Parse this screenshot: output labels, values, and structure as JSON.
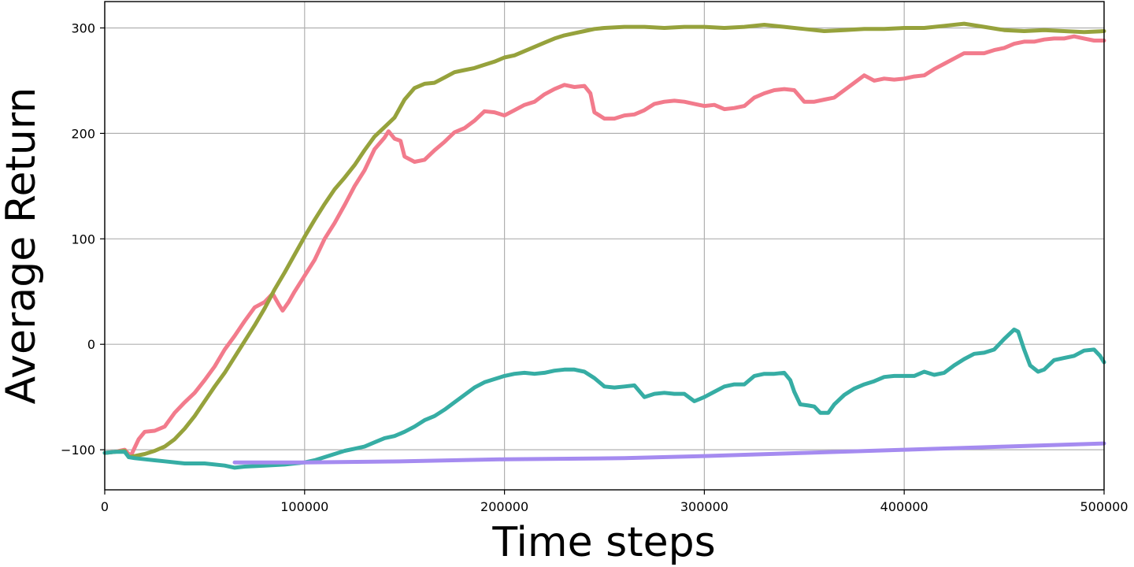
{
  "chart_data": {
    "type": "line",
    "xlabel": "Time steps",
    "ylabel": "Average Return",
    "xlim": [
      0,
      500000
    ],
    "ylim": [
      -138,
      325
    ],
    "x_ticks": [
      0,
      100000,
      200000,
      300000,
      400000,
      500000
    ],
    "y_ticks": [
      -100,
      0,
      100,
      200,
      300
    ],
    "grid": true,
    "series": [
      {
        "color": "#f27b8c",
        "points": [
          [
            0,
            -103
          ],
          [
            5000,
            -102
          ],
          [
            10000,
            -100
          ],
          [
            13000,
            -106
          ],
          [
            17000,
            -90
          ],
          [
            20000,
            -83
          ],
          [
            25000,
            -82
          ],
          [
            30000,
            -78
          ],
          [
            35000,
            -65
          ],
          [
            40000,
            -55
          ],
          [
            45000,
            -46
          ],
          [
            50000,
            -34
          ],
          [
            55000,
            -21
          ],
          [
            60000,
            -5
          ],
          [
            65000,
            8
          ],
          [
            70000,
            22
          ],
          [
            75000,
            35
          ],
          [
            80000,
            40
          ],
          [
            84000,
            48
          ],
          [
            87000,
            38
          ],
          [
            89000,
            32
          ],
          [
            92000,
            40
          ],
          [
            95000,
            50
          ],
          [
            100000,
            65
          ],
          [
            105000,
            80
          ],
          [
            110000,
            100
          ],
          [
            115000,
            115
          ],
          [
            120000,
            132
          ],
          [
            125000,
            150
          ],
          [
            130000,
            165
          ],
          [
            135000,
            185
          ],
          [
            140000,
            196
          ],
          [
            142000,
            202
          ],
          [
            145000,
            195
          ],
          [
            148000,
            193
          ],
          [
            150000,
            178
          ],
          [
            155000,
            173
          ],
          [
            160000,
            175
          ],
          [
            165000,
            184
          ],
          [
            170000,
            192
          ],
          [
            175000,
            201
          ],
          [
            180000,
            205
          ],
          [
            185000,
            212
          ],
          [
            190000,
            221
          ],
          [
            195000,
            220
          ],
          [
            200000,
            217
          ],
          [
            205000,
            222
          ],
          [
            210000,
            227
          ],
          [
            215000,
            230
          ],
          [
            220000,
            237
          ],
          [
            225000,
            242
          ],
          [
            230000,
            246
          ],
          [
            235000,
            244
          ],
          [
            240000,
            245
          ],
          [
            243000,
            238
          ],
          [
            245000,
            220
          ],
          [
            250000,
            214
          ],
          [
            255000,
            214
          ],
          [
            260000,
            217
          ],
          [
            265000,
            218
          ],
          [
            270000,
            222
          ],
          [
            275000,
            228
          ],
          [
            280000,
            230
          ],
          [
            285000,
            231
          ],
          [
            290000,
            230
          ],
          [
            295000,
            228
          ],
          [
            300000,
            226
          ],
          [
            305000,
            227
          ],
          [
            310000,
            223
          ],
          [
            315000,
            224
          ],
          [
            320000,
            226
          ],
          [
            325000,
            234
          ],
          [
            330000,
            238
          ],
          [
            335000,
            241
          ],
          [
            340000,
            242
          ],
          [
            345000,
            241
          ],
          [
            350000,
            230
          ],
          [
            355000,
            230
          ],
          [
            360000,
            232
          ],
          [
            365000,
            234
          ],
          [
            370000,
            241
          ],
          [
            375000,
            248
          ],
          [
            380000,
            255
          ],
          [
            385000,
            250
          ],
          [
            390000,
            252
          ],
          [
            395000,
            251
          ],
          [
            400000,
            252
          ],
          [
            405000,
            254
          ],
          [
            410000,
            255
          ],
          [
            415000,
            261
          ],
          [
            420000,
            266
          ],
          [
            425000,
            271
          ],
          [
            430000,
            276
          ],
          [
            435000,
            276
          ],
          [
            440000,
            276
          ],
          [
            445000,
            279
          ],
          [
            450000,
            281
          ],
          [
            455000,
            285
          ],
          [
            460000,
            287
          ],
          [
            465000,
            287
          ],
          [
            470000,
            289
          ],
          [
            475000,
            290
          ],
          [
            480000,
            290
          ],
          [
            485000,
            292
          ],
          [
            490000,
            290
          ],
          [
            495000,
            288
          ],
          [
            500000,
            288
          ]
        ]
      },
      {
        "color": "#96a23c",
        "points": [
          [
            0,
            -103
          ],
          [
            5000,
            -102
          ],
          [
            10000,
            -101
          ],
          [
            12000,
            -107
          ],
          [
            15000,
            -106
          ],
          [
            20000,
            -104
          ],
          [
            25000,
            -101
          ],
          [
            30000,
            -97
          ],
          [
            35000,
            -90
          ],
          [
            40000,
            -80
          ],
          [
            45000,
            -68
          ],
          [
            50000,
            -54
          ],
          [
            55000,
            -40
          ],
          [
            60000,
            -27
          ],
          [
            65000,
            -12
          ],
          [
            70000,
            3
          ],
          [
            75000,
            18
          ],
          [
            80000,
            34
          ],
          [
            85000,
            52
          ],
          [
            90000,
            68
          ],
          [
            95000,
            85
          ],
          [
            100000,
            102
          ],
          [
            105000,
            118
          ],
          [
            110000,
            133
          ],
          [
            115000,
            147
          ],
          [
            120000,
            158
          ],
          [
            125000,
            170
          ],
          [
            130000,
            184
          ],
          [
            135000,
            197
          ],
          [
            140000,
            206
          ],
          [
            145000,
            215
          ],
          [
            150000,
            232
          ],
          [
            155000,
            243
          ],
          [
            160000,
            247
          ],
          [
            165000,
            248
          ],
          [
            170000,
            253
          ],
          [
            175000,
            258
          ],
          [
            180000,
            260
          ],
          [
            185000,
            262
          ],
          [
            190000,
            265
          ],
          [
            195000,
            268
          ],
          [
            200000,
            272
          ],
          [
            205000,
            274
          ],
          [
            210000,
            278
          ],
          [
            215000,
            282
          ],
          [
            220000,
            286
          ],
          [
            225000,
            290
          ],
          [
            230000,
            293
          ],
          [
            235000,
            295
          ],
          [
            240000,
            297
          ],
          [
            245000,
            299
          ],
          [
            250000,
            300
          ],
          [
            260000,
            301
          ],
          [
            270000,
            301
          ],
          [
            280000,
            300
          ],
          [
            290000,
            301
          ],
          [
            300000,
            301
          ],
          [
            310000,
            300
          ],
          [
            320000,
            301
          ],
          [
            330000,
            303
          ],
          [
            340000,
            301
          ],
          [
            350000,
            299
          ],
          [
            360000,
            297
          ],
          [
            370000,
            298
          ],
          [
            380000,
            299
          ],
          [
            390000,
            299
          ],
          [
            400000,
            300
          ],
          [
            410000,
            300
          ],
          [
            420000,
            302
          ],
          [
            430000,
            304
          ],
          [
            440000,
            301
          ],
          [
            450000,
            298
          ],
          [
            460000,
            297
          ],
          [
            470000,
            298
          ],
          [
            480000,
            297
          ],
          [
            490000,
            296
          ],
          [
            500000,
            297
          ]
        ]
      },
      {
        "color": "#36ada4",
        "points": [
          [
            0,
            -103
          ],
          [
            5000,
            -102
          ],
          [
            10000,
            -102
          ],
          [
            12000,
            -107
          ],
          [
            15000,
            -108
          ],
          [
            20000,
            -109
          ],
          [
            25000,
            -110
          ],
          [
            30000,
            -111
          ],
          [
            40000,
            -113
          ],
          [
            50000,
            -113
          ],
          [
            60000,
            -115
          ],
          [
            65000,
            -117
          ],
          [
            70000,
            -116
          ],
          [
            80000,
            -115
          ],
          [
            90000,
            -114
          ],
          [
            95000,
            -113
          ],
          [
            100000,
            -112
          ],
          [
            105000,
            -110
          ],
          [
            110000,
            -107
          ],
          [
            115000,
            -104
          ],
          [
            120000,
            -101
          ],
          [
            125000,
            -99
          ],
          [
            130000,
            -97
          ],
          [
            135000,
            -93
          ],
          [
            140000,
            -89
          ],
          [
            145000,
            -87
          ],
          [
            150000,
            -83
          ],
          [
            155000,
            -78
          ],
          [
            160000,
            -72
          ],
          [
            165000,
            -68
          ],
          [
            170000,
            -62
          ],
          [
            175000,
            -55
          ],
          [
            180000,
            -48
          ],
          [
            185000,
            -41
          ],
          [
            190000,
            -36
          ],
          [
            195000,
            -33
          ],
          [
            200000,
            -30
          ],
          [
            205000,
            -28
          ],
          [
            210000,
            -27
          ],
          [
            215000,
            -28
          ],
          [
            220000,
            -27
          ],
          [
            225000,
            -25
          ],
          [
            230000,
            -24
          ],
          [
            235000,
            -24
          ],
          [
            240000,
            -26
          ],
          [
            245000,
            -32
          ],
          [
            250000,
            -40
          ],
          [
            255000,
            -41
          ],
          [
            260000,
            -40
          ],
          [
            265000,
            -39
          ],
          [
            270000,
            -50
          ],
          [
            275000,
            -47
          ],
          [
            280000,
            -46
          ],
          [
            285000,
            -47
          ],
          [
            290000,
            -47
          ],
          [
            295000,
            -54
          ],
          [
            300000,
            -50
          ],
          [
            305000,
            -45
          ],
          [
            310000,
            -40
          ],
          [
            315000,
            -38
          ],
          [
            320000,
            -38
          ],
          [
            325000,
            -30
          ],
          [
            330000,
            -28
          ],
          [
            335000,
            -28
          ],
          [
            340000,
            -27
          ],
          [
            343000,
            -34
          ],
          [
            345000,
            -45
          ],
          [
            348000,
            -57
          ],
          [
            352000,
            -58
          ],
          [
            355000,
            -59
          ],
          [
            358000,
            -65
          ],
          [
            362000,
            -65
          ],
          [
            365000,
            -57
          ],
          [
            370000,
            -48
          ],
          [
            375000,
            -42
          ],
          [
            380000,
            -38
          ],
          [
            385000,
            -35
          ],
          [
            390000,
            -31
          ],
          [
            395000,
            -30
          ],
          [
            400000,
            -30
          ],
          [
            405000,
            -30
          ],
          [
            410000,
            -26
          ],
          [
            415000,
            -29
          ],
          [
            420000,
            -27
          ],
          [
            425000,
            -20
          ],
          [
            430000,
            -14
          ],
          [
            435000,
            -9
          ],
          [
            440000,
            -8
          ],
          [
            445000,
            -5
          ],
          [
            450000,
            5
          ],
          [
            455000,
            14
          ],
          [
            457000,
            12
          ],
          [
            460000,
            -5
          ],
          [
            463000,
            -20
          ],
          [
            467000,
            -26
          ],
          [
            470000,
            -24
          ],
          [
            475000,
            -15
          ],
          [
            480000,
            -13
          ],
          [
            485000,
            -11
          ],
          [
            490000,
            -6
          ],
          [
            495000,
            -5
          ],
          [
            498000,
            -11
          ],
          [
            500000,
            -17
          ]
        ]
      },
      {
        "color": "#a58bf0",
        "points": [
          [
            65000,
            -112
          ],
          [
            100000,
            -112
          ],
          [
            150000,
            -111
          ],
          [
            200000,
            -109
          ],
          [
            260000,
            -108
          ],
          [
            300000,
            -106
          ],
          [
            350000,
            -103
          ],
          [
            400000,
            -100
          ],
          [
            450000,
            -97
          ],
          [
            500000,
            -94
          ]
        ]
      }
    ]
  }
}
